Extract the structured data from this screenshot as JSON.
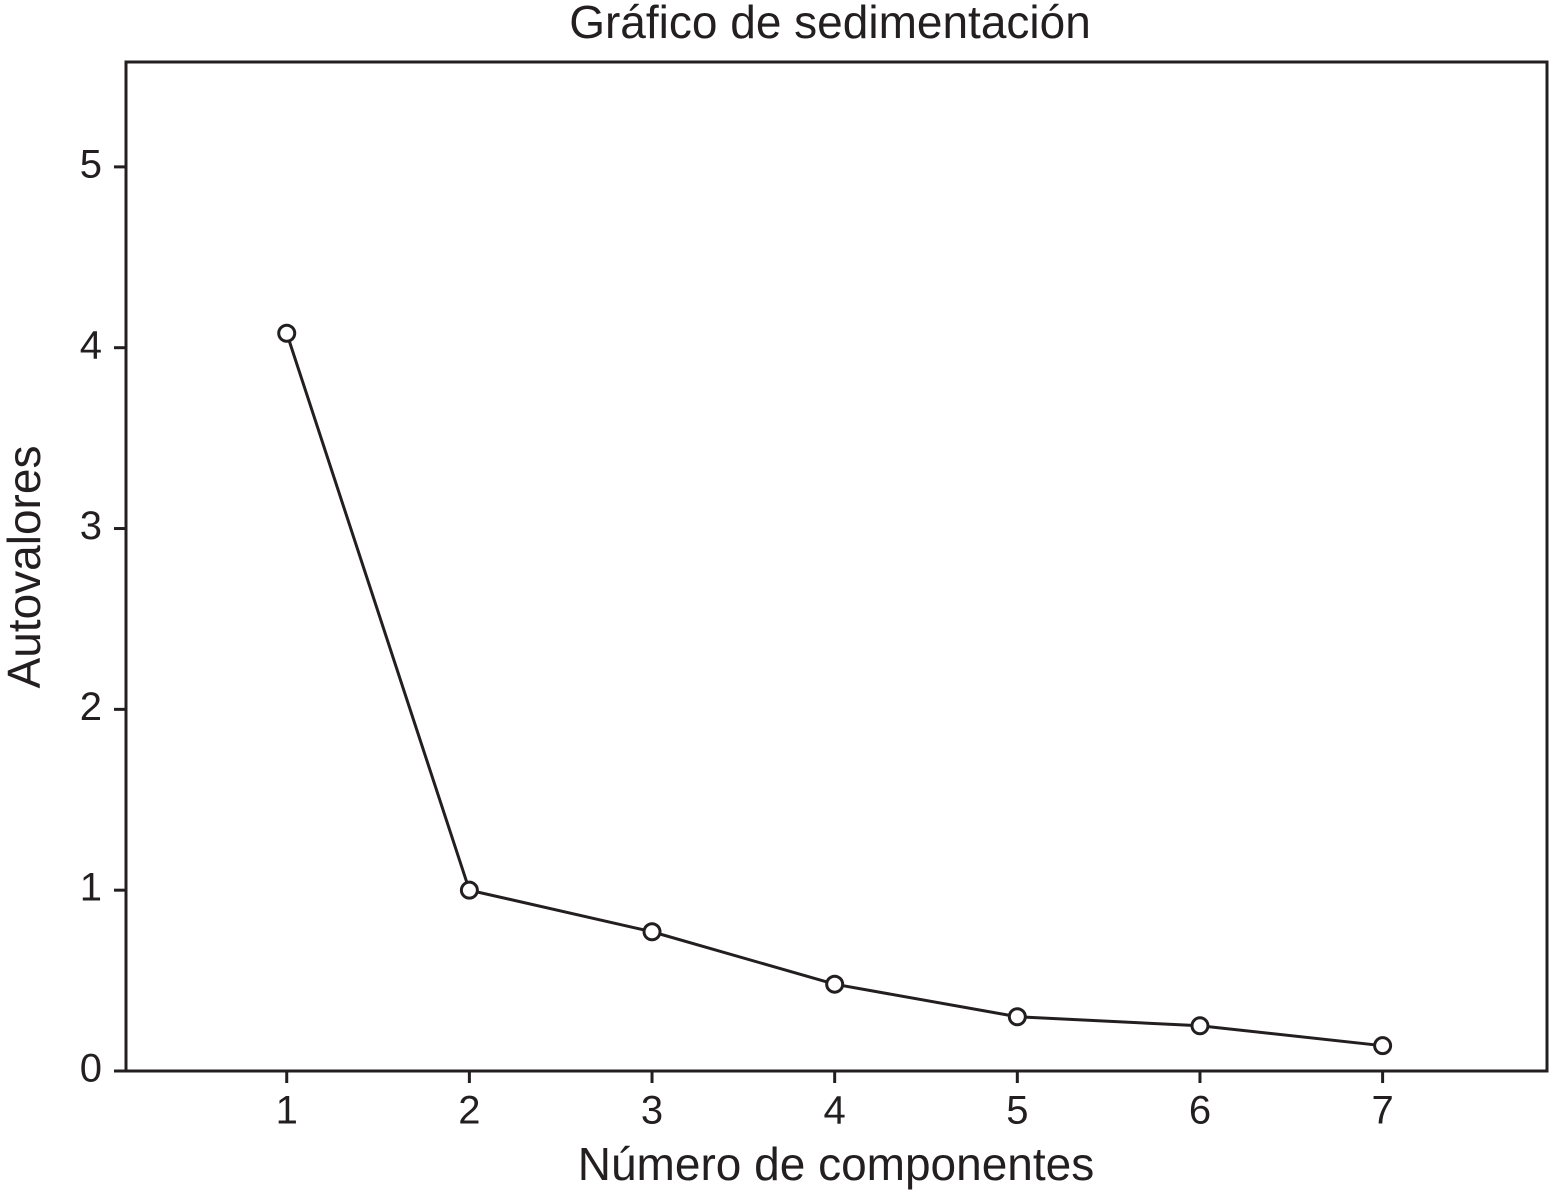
{
  "chart_data": {
    "type": "line",
    "title": "Gráfico de sedimentación",
    "x_label": "Número de componentes",
    "y_label": "Autovalores",
    "x": [
      1,
      2,
      3,
      4,
      5,
      6,
      7
    ],
    "values": [
      4.08,
      1.0,
      0.77,
      0.48,
      0.3,
      0.25,
      0.14
    ],
    "color": "#231f20",
    "xlim": [
      0.12,
      7.9
    ],
    "xticks": [
      1,
      2,
      3,
      4,
      5,
      6,
      7
    ],
    "ylim": [
      0,
      5.58
    ],
    "yticks": [
      0,
      1,
      2,
      3,
      4,
      5
    ],
    "grid": false,
    "markers": "open-circle"
  }
}
